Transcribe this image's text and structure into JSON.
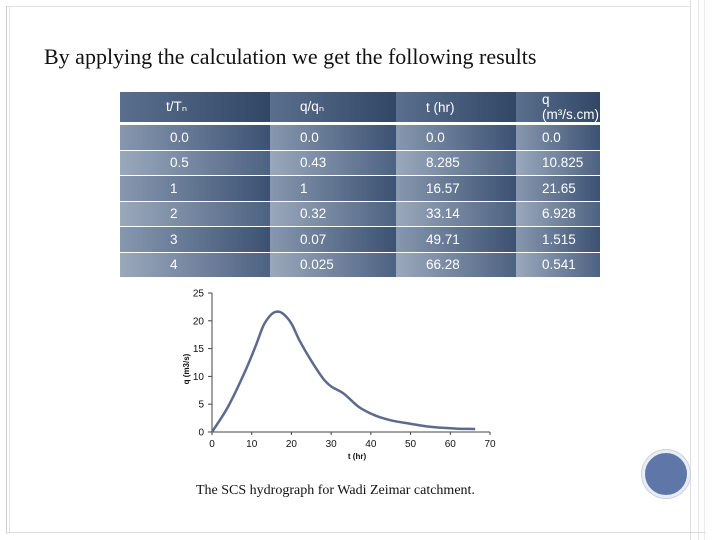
{
  "slide": {
    "title": "By applying the calculation we get the following results",
    "caption": "The SCS hydrograph for Wadi Zeimar catchment."
  },
  "table": {
    "headers": [
      "t/Tₙ",
      "q/qₙ",
      "t (hr)",
      "q (m³/s.cm)"
    ],
    "rows": [
      [
        "0.0",
        "0.0",
        "0.0",
        "0.0"
      ],
      [
        "0.5",
        "0.43",
        "8.285",
        "10.825"
      ],
      [
        "1",
        "1",
        "16.57",
        "21.65"
      ],
      [
        "2",
        "0.32",
        "33.14",
        "6.928"
      ],
      [
        "3",
        "0.07",
        "49.71",
        "1.515"
      ],
      [
        "4",
        "0.025",
        "66.28",
        "0.541"
      ]
    ]
  },
  "chart_data": {
    "type": "line",
    "xlabel": "t (hr)",
    "ylabel": "q (m3/s)",
    "xlim": [
      0,
      70
    ],
    "ylim": [
      0,
      25
    ],
    "xticks": [
      0,
      10,
      20,
      30,
      40,
      50,
      60,
      70
    ],
    "yticks": [
      0,
      5,
      10,
      15,
      20,
      25
    ],
    "grid": false,
    "series": [
      {
        "color": "#5c6a8e",
        "x": [
          0,
          4,
          8.285,
          11,
          13,
          15,
          16.57,
          18,
          20,
          22,
          25,
          28,
          30,
          33.14,
          37,
          41,
          45,
          49.71,
          54,
          58,
          62,
          66.28
        ],
        "y": [
          0,
          4.5,
          10.825,
          15.5,
          19.2,
          21.2,
          21.65,
          21.2,
          19.5,
          16.5,
          12.8,
          9.6,
          8.2,
          6.928,
          4.5,
          3.0,
          2.1,
          1.515,
          1.0,
          0.75,
          0.6,
          0.541
        ]
      }
    ]
  }
}
